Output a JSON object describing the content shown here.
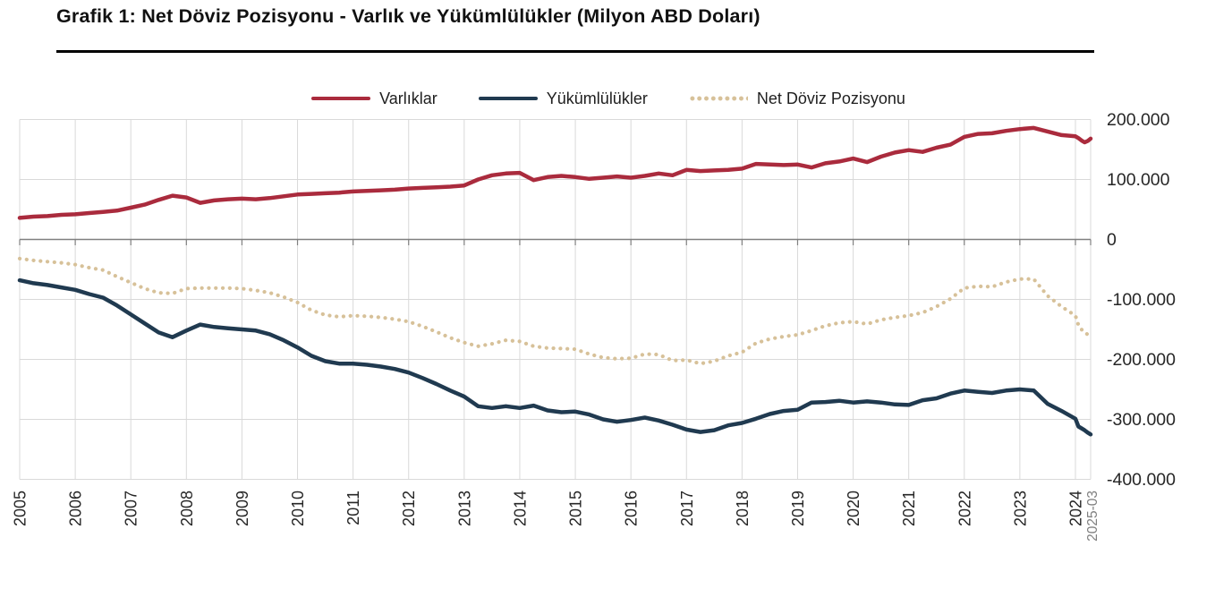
{
  "title": "Grafik 1: Net Döviz Pozisyonu - Varlık ve Yükümlülükler (Milyon ABD Doları)",
  "legend": [
    {
      "label": "Varlıklar",
      "color": "#AA2B3D",
      "style": "solid"
    },
    {
      "label": "Yükümlülükler",
      "color": "#203A50",
      "style": "solid"
    },
    {
      "label": "Net Döviz Pozisyonu",
      "color": "#D7C199",
      "style": "dotted"
    }
  ],
  "colors": {
    "grid": "#d9d9d9",
    "zero_axis": "#808080",
    "tick": "#808080",
    "axis_text": "#262626",
    "last_label": "#808080",
    "title_text": "#111111",
    "rule": "#000000"
  },
  "y_axis": {
    "tick_labels": [
      "200.000",
      "100.000",
      "0",
      "-100.000",
      "-200.000",
      "-300.000",
      "-400.000"
    ],
    "tick_values": [
      200000,
      100000,
      0,
      -100000,
      -200000,
      -300000,
      -400000
    ]
  },
  "x_axis": {
    "year_labels": [
      "2005",
      "2006",
      "2007",
      "2008",
      "2009",
      "2010",
      "2011",
      "2012",
      "2013",
      "2014",
      "2015",
      "2016",
      "2017",
      "2018",
      "2019",
      "2020",
      "2021",
      "2022",
      "2023",
      "2024"
    ],
    "last_label": "2025-03"
  },
  "chart_data": {
    "type": "line",
    "title": "Grafik 1: Net Döviz Pozisyonu - Varlık ve Yükümlülükler (Milyon ABD Doları)",
    "unit": "Milyon ABD Doları",
    "ylim": [
      -400000,
      200000
    ],
    "grid": true,
    "legend_position": "top",
    "x_unit": "year (quarterly samples, 2005Q1 - 2025Q1)",
    "x": [
      2005,
      2005.25,
      2005.5,
      2005.75,
      2006,
      2006.25,
      2006.5,
      2006.75,
      2007,
      2007.25,
      2007.5,
      2007.75,
      2008,
      2008.25,
      2008.5,
      2008.75,
      2009,
      2009.25,
      2009.5,
      2009.75,
      2010,
      2010.25,
      2010.5,
      2010.75,
      2011,
      2011.25,
      2011.5,
      2011.75,
      2012,
      2012.25,
      2012.5,
      2012.75,
      2013,
      2013.25,
      2013.5,
      2013.75,
      2014,
      2014.25,
      2014.5,
      2014.75,
      2015,
      2015.25,
      2015.5,
      2015.75,
      2016,
      2016.25,
      2016.5,
      2016.75,
      2017,
      2017.25,
      2017.5,
      2017.75,
      2018,
      2018.25,
      2018.5,
      2018.75,
      2019,
      2019.25,
      2019.5,
      2019.75,
      2020,
      2020.25,
      2020.5,
      2020.75,
      2021,
      2021.25,
      2021.5,
      2021.75,
      2022,
      2022.25,
      2022.5,
      2022.75,
      2023,
      2023.25,
      2023.5,
      2023.75,
      2024,
      2024.25,
      2024.5,
      2024.75,
      2025,
      2025.25
    ],
    "series": [
      {
        "name": "Varlıklar",
        "color": "#AA2B3D",
        "line_style": "solid",
        "values": [
          36000,
          38000,
          39000,
          41000,
          42000,
          44000,
          46000,
          48000,
          53000,
          58000,
          66000,
          73000,
          70000,
          61000,
          65000,
          67000,
          68000,
          67000,
          69000,
          72000,
          75000,
          76000,
          77000,
          78000,
          80000,
          81000,
          82000,
          83000,
          85000,
          86000,
          87000,
          88000,
          90000,
          100000,
          107000,
          110000,
          111000,
          99000,
          104000,
          106000,
          104000,
          101000,
          103000,
          105000,
          103000,
          106000,
          110000,
          107000,
          116000,
          114000,
          115000,
          116000,
          118000,
          126000,
          125000,
          124000,
          125000,
          120000,
          127000,
          130000,
          135000,
          129000,
          138000,
          145000,
          149000,
          146000,
          153000,
          158000,
          171000,
          176000,
          177000,
          181000,
          184000,
          186000,
          180000,
          174000,
          172000,
          169000,
          165000,
          162000,
          164000,
          168000
        ]
      },
      {
        "name": "Yükümlülükler",
        "color": "#203A50",
        "line_style": "solid",
        "values": [
          -68000,
          -73000,
          -76000,
          -80000,
          -84000,
          -91000,
          -97000,
          -110000,
          -125000,
          -140000,
          -155000,
          -163000,
          -152000,
          -142000,
          -146000,
          -148000,
          -150000,
          -152000,
          -158000,
          -168000,
          -180000,
          -194000,
          -203000,
          -207000,
          -207000,
          -209000,
          -212000,
          -216000,
          -222000,
          -231000,
          -241000,
          -252000,
          -262000,
          -278000,
          -281000,
          -278000,
          -281000,
          -277000,
          -285000,
          -288000,
          -287000,
          -292000,
          -300000,
          -304000,
          -301000,
          -297000,
          -302000,
          -309000,
          -317000,
          -321000,
          -318000,
          -310000,
          -306000,
          -299000,
          -291000,
          -286000,
          -284000,
          -272000,
          -271000,
          -269000,
          -272000,
          -270000,
          -272000,
          -275000,
          -276000,
          -268000,
          -265000,
          -257000,
          -252000,
          -254000,
          -256000,
          -252000,
          -250000,
          -252000,
          -274000,
          -286000,
          -299000,
          -312000,
          -315000,
          -318000,
          -322000,
          -325000
        ]
      },
      {
        "name": "Net Döviz Pozisyonu",
        "color": "#D7C199",
        "line_style": "dotted",
        "values": [
          -32000,
          -35000,
          -37000,
          -39000,
          -42000,
          -47000,
          -51000,
          -62000,
          -72000,
          -82000,
          -89000,
          -90000,
          -82000,
          -81000,
          -81000,
          -81000,
          -82000,
          -85000,
          -89000,
          -96000,
          -105000,
          -118000,
          -126000,
          -129000,
          -127000,
          -128000,
          -130000,
          -133000,
          -137000,
          -145000,
          -154000,
          -164000,
          -172000,
          -178000,
          -174000,
          -168000,
          -170000,
          -178000,
          -181000,
          -182000,
          -183000,
          -191000,
          -197000,
          -199000,
          -198000,
          -191000,
          -192000,
          -202000,
          -201000,
          -207000,
          -203000,
          -194000,
          -188000,
          -173000,
          -166000,
          -162000,
          -159000,
          -152000,
          -144000,
          -139000,
          -137000,
          -141000,
          -134000,
          -130000,
          -127000,
          -122000,
          -112000,
          -99000,
          -81000,
          -78000,
          -79000,
          -71000,
          -66000,
          -66000,
          -94000,
          -112000,
          -127000,
          -143000,
          -150000,
          -156000,
          -158000,
          -157000
        ]
      }
    ]
  }
}
